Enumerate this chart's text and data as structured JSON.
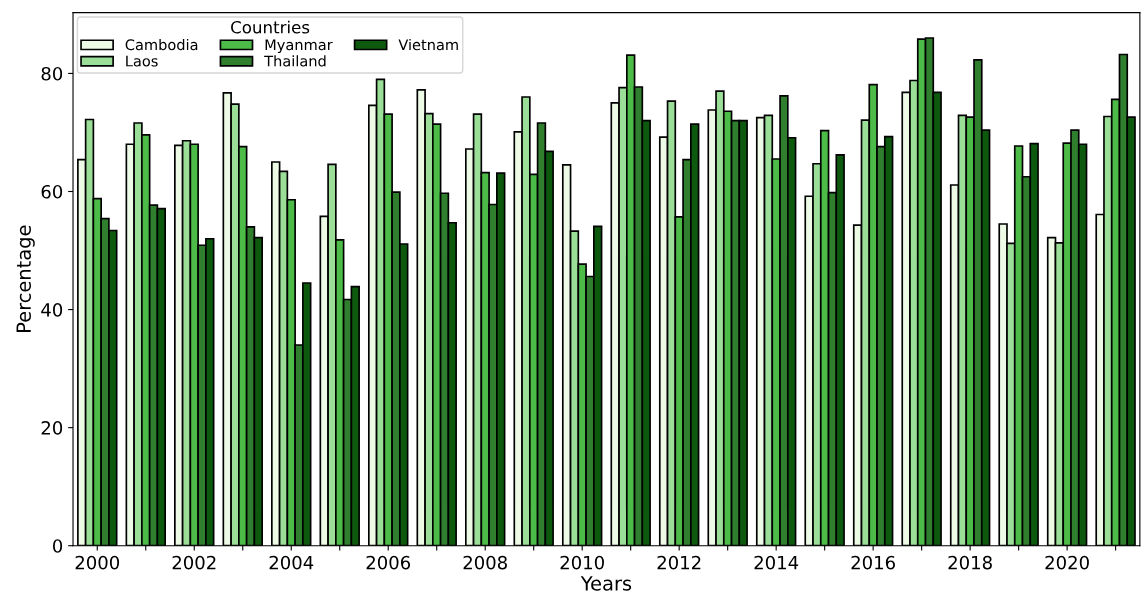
{
  "chart_data": {
    "type": "bar",
    "xlabel": "Years",
    "ylabel": "Percentage",
    "legend_title": "Countries",
    "categories": [
      "2000",
      null,
      "2002",
      null,
      "2004",
      null,
      "2006",
      null,
      "2008",
      null,
      "2010",
      null,
      "2012",
      null,
      "2014",
      null,
      "2016",
      null,
      "2018",
      null,
      "2020",
      null
    ],
    "series": [
      {
        "name": "Cambodia",
        "color": "#edfae6",
        "values": [
          65.4,
          68.0,
          67.8,
          76.7,
          65.0,
          55.8,
          74.6,
          77.2,
          67.2,
          70.1,
          64.5,
          75.0,
          69.2,
          73.8,
          72.5,
          59.2,
          54.3,
          76.8,
          61.1,
          54.5,
          52.2,
          56.1
        ]
      },
      {
        "name": "Laos",
        "color": "#9ade98",
        "values": [
          72.2,
          71.6,
          68.6,
          74.8,
          63.4,
          64.6,
          79.0,
          73.2,
          73.1,
          76.0,
          53.3,
          77.6,
          75.3,
          77.0,
          72.9,
          64.7,
          72.1,
          78.8,
          72.9,
          51.2,
          51.3,
          72.7
        ]
      },
      {
        "name": "Myanmar",
        "color": "#4cbb47",
        "values": [
          58.8,
          69.6,
          68.0,
          67.6,
          58.6,
          51.8,
          73.1,
          71.4,
          63.2,
          62.9,
          47.7,
          83.1,
          55.7,
          73.6,
          65.5,
          70.3,
          78.1,
          85.8,
          72.6,
          67.7,
          68.2,
          75.6
        ]
      },
      {
        "name": "Thailand",
        "color": "#2f7f2f",
        "values": [
          55.4,
          57.7,
          50.9,
          54.0,
          34.0,
          41.7,
          59.9,
          59.7,
          57.8,
          71.6,
          45.6,
          77.7,
          65.4,
          72.0,
          76.2,
          59.8,
          67.6,
          86.0,
          82.3,
          62.5,
          70.4,
          83.2
        ]
      },
      {
        "name": "Vietnam",
        "color": "#0d5a0f",
        "values": [
          53.4,
          57.1,
          52.0,
          52.2,
          44.5,
          43.9,
          51.1,
          54.7,
          63.1,
          66.8,
          54.1,
          72.0,
          71.4,
          72.0,
          69.1,
          66.2,
          69.3,
          76.8,
          70.4,
          68.1,
          68.0,
          72.6
        ]
      }
    ],
    "ylim": [
      0,
      90.3
    ],
    "yticks": [
      0,
      20,
      40,
      60,
      80
    ],
    "grid": false,
    "legend": "top left"
  }
}
